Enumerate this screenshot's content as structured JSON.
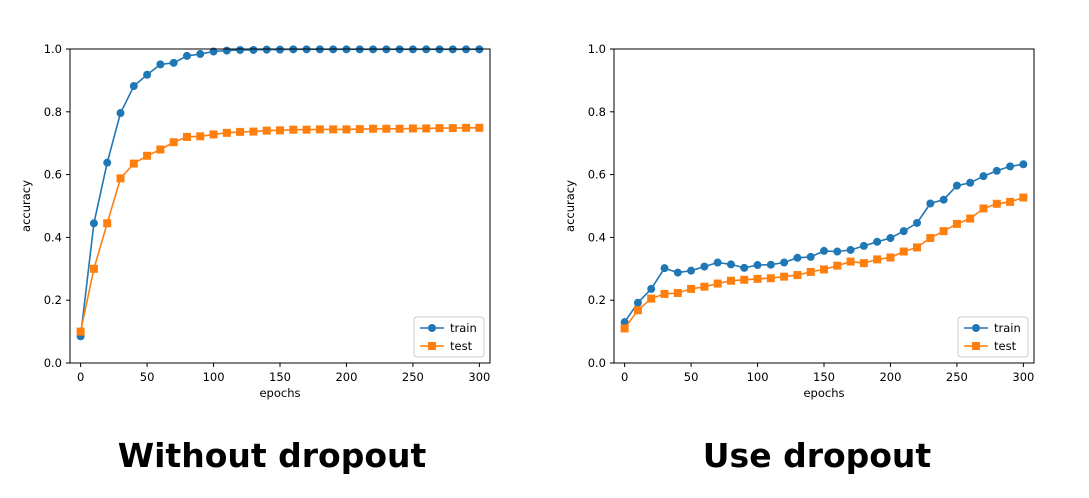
{
  "chart_data": [
    {
      "type": "line",
      "xlabel": "epochs",
      "ylabel": "accuracy",
      "xlim": [
        -8,
        308
      ],
      "ylim": [
        0.0,
        1.0
      ],
      "xticks": [
        "0",
        "50",
        "100",
        "150",
        "200",
        "250",
        "300"
      ],
      "yticks": [
        "0.0",
        "0.2",
        "0.4",
        "0.6",
        "0.8",
        "1.0"
      ],
      "legend_position": "lower-right",
      "caption": "Without dropout",
      "series": [
        {
          "name": "train",
          "color": "#1f77b4",
          "marker": "circle",
          "x": [
            0,
            10,
            20,
            30,
            40,
            50,
            60,
            70,
            80,
            90,
            100,
            110,
            120,
            130,
            140,
            150,
            160,
            170,
            180,
            190,
            200,
            210,
            220,
            230,
            240,
            250,
            260,
            270,
            280,
            290,
            300
          ],
          "values": [
            0.085,
            0.445,
            0.638,
            0.796,
            0.882,
            0.918,
            0.951,
            0.956,
            0.978,
            0.984,
            0.992,
            0.995,
            0.997,
            0.997,
            0.998,
            0.998,
            0.999,
            0.999,
            0.999,
            0.999,
            0.999,
            0.999,
            0.999,
            0.999,
            0.999,
            0.999,
            0.999,
            0.999,
            0.999,
            0.999,
            0.999
          ]
        },
        {
          "name": "test",
          "color": "#ff7f0e",
          "marker": "square",
          "x": [
            0,
            10,
            20,
            30,
            40,
            50,
            60,
            70,
            80,
            90,
            100,
            110,
            120,
            130,
            140,
            150,
            160,
            170,
            180,
            190,
            200,
            210,
            220,
            230,
            240,
            250,
            260,
            270,
            280,
            290,
            300
          ],
          "values": [
            0.1,
            0.3,
            0.445,
            0.588,
            0.635,
            0.66,
            0.68,
            0.703,
            0.72,
            0.722,
            0.728,
            0.733,
            0.736,
            0.737,
            0.74,
            0.741,
            0.743,
            0.743,
            0.744,
            0.744,
            0.744,
            0.745,
            0.746,
            0.746,
            0.746,
            0.747,
            0.747,
            0.748,
            0.748,
            0.749,
            0.749
          ]
        }
      ]
    },
    {
      "type": "line",
      "xlabel": "epochs",
      "ylabel": "accuracy",
      "xlim": [
        -8,
        308
      ],
      "ylim": [
        0.0,
        1.0
      ],
      "xticks": [
        "0",
        "50",
        "100",
        "150",
        "200",
        "250",
        "300"
      ],
      "yticks": [
        "0.0",
        "0.2",
        "0.4",
        "0.6",
        "0.8",
        "1.0"
      ],
      "legend_position": "lower-right",
      "caption": "Use dropout",
      "series": [
        {
          "name": "train",
          "color": "#1f77b4",
          "marker": "circle",
          "x": [
            0,
            10,
            20,
            30,
            40,
            50,
            60,
            70,
            80,
            90,
            100,
            110,
            120,
            130,
            140,
            150,
            160,
            170,
            180,
            190,
            200,
            210,
            220,
            230,
            240,
            250,
            260,
            270,
            280,
            290,
            300
          ],
          "values": [
            0.13,
            0.192,
            0.236,
            0.302,
            0.288,
            0.294,
            0.307,
            0.32,
            0.314,
            0.303,
            0.312,
            0.313,
            0.32,
            0.335,
            0.338,
            0.357,
            0.355,
            0.36,
            0.373,
            0.386,
            0.398,
            0.42,
            0.446,
            0.508,
            0.52,
            0.565,
            0.574,
            0.595,
            0.612,
            0.626,
            0.633
          ]
        },
        {
          "name": "test",
          "color": "#ff7f0e",
          "marker": "square",
          "x": [
            0,
            10,
            20,
            30,
            40,
            50,
            60,
            70,
            80,
            90,
            100,
            110,
            120,
            130,
            140,
            150,
            160,
            170,
            180,
            190,
            200,
            210,
            220,
            230,
            240,
            250,
            260,
            270,
            280,
            290,
            300
          ],
          "values": [
            0.11,
            0.168,
            0.205,
            0.22,
            0.223,
            0.236,
            0.243,
            0.253,
            0.262,
            0.265,
            0.268,
            0.27,
            0.275,
            0.28,
            0.29,
            0.298,
            0.31,
            0.323,
            0.318,
            0.33,
            0.336,
            0.355,
            0.368,
            0.398,
            0.42,
            0.443,
            0.46,
            0.492,
            0.507,
            0.513,
            0.527
          ]
        }
      ]
    }
  ]
}
